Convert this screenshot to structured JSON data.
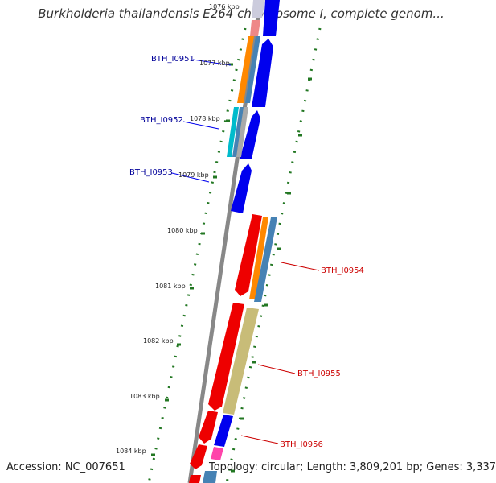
{
  "title": "Burkholderia thailandensis E264 chromosome I, complete genom...",
  "accession": "Accession: NC_007651",
  "topology": "Topology: circular; Length: 3,809,201 bp; Genes: 3,337",
  "kbp_labels": [
    "1076 kbp",
    "1077 kbp",
    "1078 kbp",
    "1079 kbp",
    "1080 kbp",
    "1081 kbp",
    "1082 kbp",
    "1083 kbp",
    "1084 kbp"
  ],
  "genes_left": [
    "BTH_I0951",
    "BTH_I0952",
    "BTH_I0953"
  ],
  "genes_right": [
    "BTH_I0954",
    "BTH_I0955",
    "BTH_I0956"
  ],
  "colors": {
    "forward_cds": "#0000ee",
    "reverse_cds": "#ee0000",
    "backbone": "#888888",
    "ticks": "#227722",
    "orange": "#ff8800",
    "steelblue": "#4682b4",
    "cyan": "#00bbcc",
    "khaki": "#c8bc78",
    "pink": "#ff44aa"
  }
}
